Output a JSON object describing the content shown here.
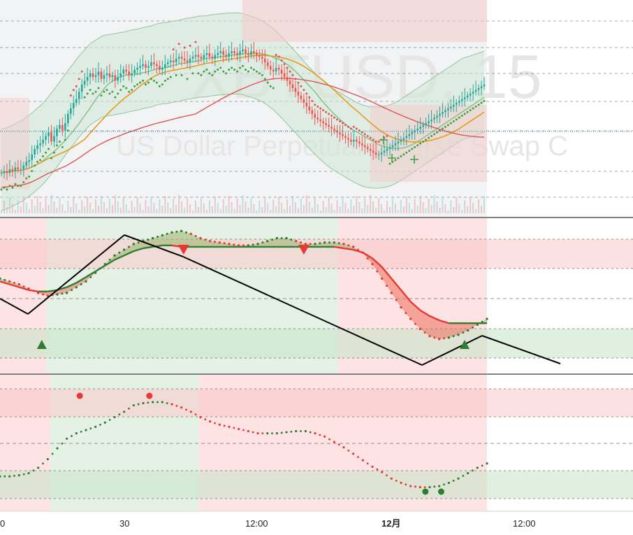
{
  "chart_data": [
    {
      "type": "candlestick",
      "panel": "price",
      "watermark_symbol": "XBTUSD, 15",
      "watermark_name": "US Dollar Perpetual Inverse Swap C",
      "x": [
        0,
        1,
        2,
        3,
        4,
        5,
        6,
        7,
        8,
        9,
        10,
        11,
        12,
        13,
        14,
        15,
        16,
        17,
        18,
        19,
        20,
        21,
        22,
        23,
        24,
        25,
        26,
        27,
        28,
        29,
        30,
        31,
        32,
        33,
        34,
        35,
        36,
        37,
        38,
        39,
        40,
        41,
        42,
        43,
        44,
        45,
        46,
        47,
        48,
        49,
        50,
        51,
        52,
        53,
        54,
        55,
        56,
        57,
        58,
        59,
        60,
        61,
        62,
        63,
        64,
        65,
        66,
        67,
        68,
        69,
        70,
        71,
        72,
        73,
        74,
        75,
        76,
        77,
        78,
        79,
        80,
        81,
        82,
        83,
        84,
        85,
        86,
        87,
        88,
        89,
        90,
        91,
        92,
        93,
        94,
        95,
        96,
        97,
        98,
        99,
        100,
        101,
        102,
        103,
        104,
        105,
        106,
        107,
        108,
        109,
        110,
        111,
        112,
        113,
        114,
        115,
        116,
        117,
        118,
        119,
        120,
        121,
        122,
        123,
        124,
        125,
        126,
        127,
        128,
        129,
        130,
        131,
        132,
        133,
        134,
        135,
        136,
        137,
        138,
        139,
        140,
        141,
        142,
        143,
        144,
        145,
        146,
        147,
        148,
        149,
        150,
        151,
        152,
        153,
        154,
        155,
        156,
        157,
        158,
        159,
        160,
        161,
        162,
        163,
        164,
        165,
        166,
        167,
        168,
        169,
        170,
        171,
        172,
        173,
        174
      ],
      "close": [
        20,
        21,
        20,
        22,
        21,
        23,
        22,
        22,
        24,
        26,
        27,
        30,
        33,
        35,
        36,
        38,
        40,
        42,
        37,
        40,
        44,
        46,
        43,
        47,
        52,
        55,
        58,
        60,
        64,
        68,
        70,
        72,
        74,
        72,
        73,
        75,
        71,
        73,
        74,
        72,
        73,
        70,
        72,
        74,
        76,
        75,
        73,
        74,
        76,
        77,
        78,
        79,
        77,
        78,
        80,
        79,
        78,
        76,
        77,
        79,
        80,
        81,
        80,
        82,
        83,
        82,
        81,
        80,
        82,
        83,
        84,
        83,
        82,
        84,
        85,
        83,
        82,
        84,
        85,
        86,
        84,
        83,
        85,
        86,
        85,
        84,
        86,
        87,
        85,
        84,
        86,
        85,
        84,
        83,
        82,
        80,
        78,
        76,
        75,
        77,
        76,
        74,
        72,
        70,
        68,
        66,
        64,
        62,
        60,
        58,
        56,
        54,
        52,
        50,
        49,
        48,
        47,
        46,
        45,
        44,
        43,
        42,
        41,
        40,
        39,
        38,
        37,
        38,
        37,
        36,
        35,
        34,
        33,
        32,
        31,
        30,
        30,
        31,
        32,
        33,
        34,
        35,
        36,
        37,
        38,
        39,
        40,
        41,
        42,
        43,
        44,
        45,
        46,
        47,
        48,
        49,
        50,
        51,
        52,
        53,
        54,
        55,
        56,
        57,
        58,
        59,
        60,
        61,
        62,
        63,
        64,
        65,
        66,
        67,
        68
      ],
      "last_price_level": 45,
      "x_ticks": [
        "0",
        "30",
        "12:00",
        "12月",
        "12:00"
      ],
      "indicators": [
        "bollinger_bands",
        "moving_average_fast",
        "moving_average_slow",
        "parabolic_sar",
        "volume"
      ]
    },
    {
      "type": "line",
      "panel": "oscillator_1",
      "series": [
        {
          "values": [
            0.62,
            0.6,
            0.58,
            0.55,
            0.52,
            0.5,
            0.51,
            0.52,
            0.56,
            0.6,
            0.66,
            0.72,
            0.78,
            0.82,
            0.86,
            0.88,
            0.9,
            0.92,
            0.94,
            0.95,
            0.93,
            0.9,
            0.88,
            0.87,
            0.86,
            0.85,
            0.85,
            0.86,
            0.88,
            0.9,
            0.9,
            0.88,
            0.86,
            0.86,
            0.87,
            0.87,
            0.86,
            0.84,
            0.8,
            0.72,
            0.62,
            0.52,
            0.42,
            0.34,
            0.27,
            0.22,
            0.2,
            0.21,
            0.23,
            0.26,
            0.3,
            0.34
          ]
        },
        {
          "values": [
            0.6,
            0.58,
            0.56,
            0.54,
            0.53,
            0.53,
            0.54,
            0.56,
            0.59,
            0.63,
            0.67,
            0.71,
            0.75,
            0.78,
            0.81,
            0.83,
            0.84,
            0.85,
            0.85,
            0.84,
            0.84,
            0.84,
            0.84,
            0.84,
            0.84,
            0.84,
            0.84,
            0.84,
            0.84,
            0.84,
            0.84,
            0.84,
            0.84,
            0.84,
            0.84,
            0.84,
            0.83,
            0.82,
            0.8,
            0.76,
            0.7,
            0.62,
            0.54,
            0.46,
            0.4,
            0.36,
            0.33,
            0.31,
            0.31,
            0.31,
            0.31,
            0.31
          ]
        }
      ],
      "signal_markers": [
        {
          "kind": "buy",
          "x": 0.066
        },
        {
          "kind": "sell",
          "x": 0.29
        },
        {
          "kind": "sell",
          "x": 0.48
        },
        {
          "kind": "buy",
          "x": 0.734
        }
      ]
    },
    {
      "type": "line",
      "panel": "oscillator_2",
      "series": [
        {
          "values": [
            0.2,
            0.2,
            0.21,
            0.23,
            0.28,
            0.36,
            0.46,
            0.55,
            0.6,
            0.63,
            0.66,
            0.7,
            0.75,
            0.8,
            0.86,
            0.88,
            0.89,
            0.89,
            0.87,
            0.84,
            0.8,
            0.75,
            0.71,
            0.68,
            0.66,
            0.64,
            0.62,
            0.6,
            0.6,
            0.6,
            0.61,
            0.62,
            0.62,
            0.6,
            0.57,
            0.52,
            0.47,
            0.41,
            0.35,
            0.29,
            0.24,
            0.18,
            0.14,
            0.11,
            0.1,
            0.1,
            0.11,
            0.14,
            0.18,
            0.23,
            0.28,
            0.32
          ]
        }
      ],
      "dot_markers": [
        {
          "kind": "sell",
          "x": 0.126
        },
        {
          "kind": "sell",
          "x": 0.236
        },
        {
          "kind": "buy",
          "x": 0.672
        },
        {
          "kind": "buy",
          "x": 0.697
        }
      ]
    }
  ]
}
